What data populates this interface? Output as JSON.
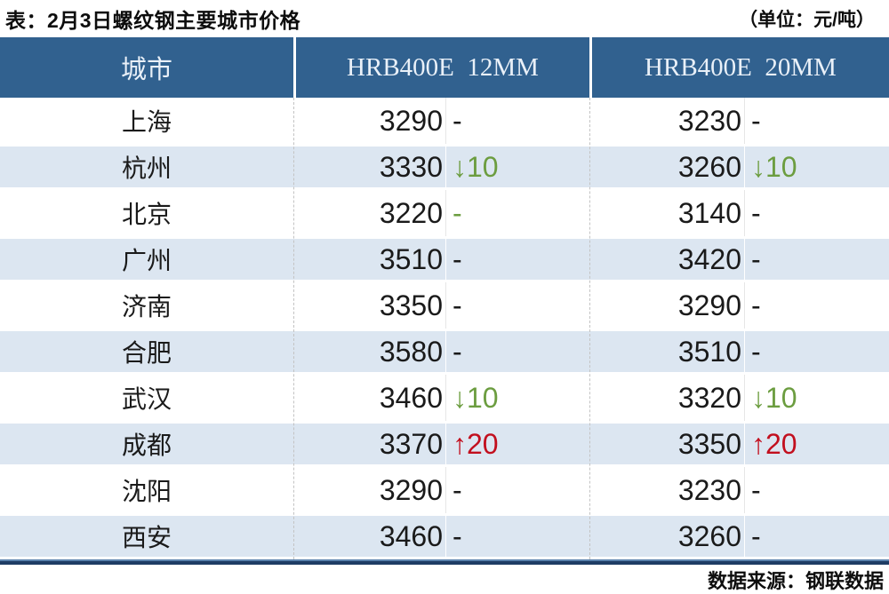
{
  "chart_data": {
    "type": "table",
    "title": "表：2月3日螺纹钢主要城市价格",
    "unit": "（单位：元/吨）",
    "source": "数据来源：钢联数据",
    "columns": [
      {
        "label": "城市"
      },
      {
        "label": "HRB400E  12MM"
      },
      {
        "label": "HRB400E  20MM"
      }
    ],
    "rows": [
      {
        "city": "上海",
        "p12": "3290",
        "c12": "-",
        "t12": "flat",
        "p20": "3230",
        "c20": "-",
        "t20": "flat"
      },
      {
        "city": "杭州",
        "p12": "3330",
        "c12": "↓10",
        "t12": "down",
        "p20": "3260",
        "c20": "↓10",
        "t20": "down"
      },
      {
        "city": "北京",
        "p12": "3220",
        "c12": "-",
        "t12": "flat-green",
        "p20": "3140",
        "c20": "-",
        "t20": "flat"
      },
      {
        "city": "广州",
        "p12": "3510",
        "c12": "-",
        "t12": "flat",
        "p20": "3420",
        "c20": "-",
        "t20": "flat"
      },
      {
        "city": "济南",
        "p12": "3350",
        "c12": "-",
        "t12": "flat",
        "p20": "3290",
        "c20": "-",
        "t20": "flat"
      },
      {
        "city": "合肥",
        "p12": "3580",
        "c12": "-",
        "t12": "flat",
        "p20": "3510",
        "c20": "-",
        "t20": "flat"
      },
      {
        "city": "武汉",
        "p12": "3460",
        "c12": "↓10",
        "t12": "down",
        "p20": "3320",
        "c20": "↓10",
        "t20": "down"
      },
      {
        "city": "成都",
        "p12": "3370",
        "c12": "↑20",
        "t12": "up",
        "p20": "3350",
        "c20": "↑20",
        "t20": "up"
      },
      {
        "city": "沈阳",
        "p12": "3290",
        "c12": "-",
        "t12": "flat",
        "p20": "3230",
        "c20": "-",
        "t20": "flat"
      },
      {
        "city": "西安",
        "p12": "3460",
        "c12": "-",
        "t12": "flat",
        "p20": "3260",
        "c20": "-",
        "t20": "flat"
      }
    ],
    "colors": {
      "header_bg": "#31618f",
      "header_text": "#e9f0f8",
      "stripe_bg": "#dce6f1",
      "up_red": "#c20f1e",
      "down_green": "#6c9d40",
      "bottom_rule_navy": "#1e3c64",
      "bottom_rule_blue": "#5b82ad"
    },
    "layout": {
      "stripe_pattern": "even rows white, odd rows light blue",
      "grid": "dashed column separators"
    }
  }
}
